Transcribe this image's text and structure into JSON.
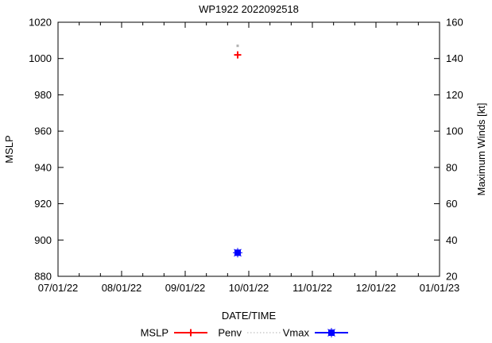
{
  "chart_data": {
    "type": "line",
    "title": "WP1922 2022092518",
    "xlabel": "DATE/TIME",
    "ylabel": "MSLP",
    "y2label": "Maximum Winds [kt]",
    "x_tick_labels": [
      "07/01/22",
      "08/01/22",
      "09/01/22",
      "10/01/22",
      "11/01/22",
      "12/01/22",
      "01/01/23"
    ],
    "x_range_months": [
      0,
      6
    ],
    "x_minor_divisions": 3,
    "ylim": [
      880,
      1020
    ],
    "y_tick_step": 20,
    "y_tick_labels": [
      "880",
      "900",
      "920",
      "940",
      "960",
      "980",
      "1000",
      "1020"
    ],
    "y2lim": [
      20,
      160
    ],
    "y2_tick_step": 20,
    "y2_tick_labels": [
      "20",
      "40",
      "60",
      "80",
      "100",
      "120",
      "140",
      "160"
    ],
    "grid": false,
    "legend_position": "bottom-center",
    "series": [
      {
        "name": "MSLP",
        "axis": "y1",
        "color": "#ff0000",
        "marker": "plus",
        "line_style": "solid",
        "points": [
          {
            "x_months": 2.825,
            "value": 1002
          }
        ]
      },
      {
        "name": "Penv",
        "axis": "y1",
        "color": "#b0b0b0",
        "marker": "dot",
        "line_style": "dotted",
        "points": [
          {
            "x_months": 2.825,
            "value": 1007
          }
        ]
      },
      {
        "name": "Vmax",
        "axis": "y2",
        "color": "#0000ff",
        "marker": "filled-square-star",
        "line_style": "solid",
        "points": [
          {
            "x_months": 2.825,
            "value": 33
          }
        ]
      }
    ]
  },
  "colors": {
    "axis": "#000000",
    "background": "#ffffff",
    "mslp_red": "#ff0000",
    "penv_gray": "#b0b0b0",
    "vmax_blue": "#0000ff"
  }
}
